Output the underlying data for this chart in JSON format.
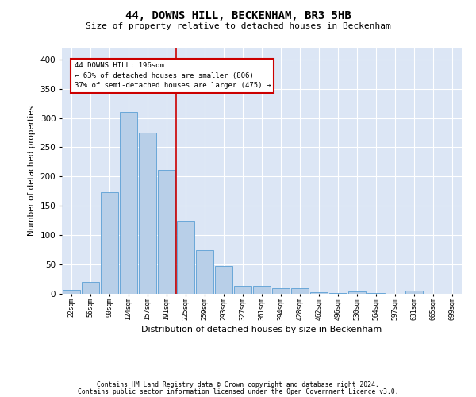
{
  "title": "44, DOWNS HILL, BECKENHAM, BR3 5HB",
  "subtitle": "Size of property relative to detached houses in Beckenham",
  "xlabel": "Distribution of detached houses by size in Beckenham",
  "ylabel": "Number of detached properties",
  "bar_labels": [
    "22sqm",
    "56sqm",
    "90sqm",
    "124sqm",
    "157sqm",
    "191sqm",
    "225sqm",
    "259sqm",
    "293sqm",
    "327sqm",
    "361sqm",
    "394sqm",
    "428sqm",
    "462sqm",
    "496sqm",
    "530sqm",
    "564sqm",
    "597sqm",
    "631sqm",
    "665sqm",
    "699sqm"
  ],
  "bar_values": [
    7,
    21,
    173,
    310,
    275,
    211,
    125,
    75,
    48,
    14,
    14,
    9,
    9,
    3,
    1,
    4,
    1,
    0,
    5,
    0,
    0
  ],
  "bar_color": "#b8cfe8",
  "bar_edge_color": "#5a9fd4",
  "bg_color": "#dce6f5",
  "grid_color": "#ffffff",
  "vline_x": 5.5,
  "vline_color": "#cc0000",
  "annotation_line1": "44 DOWNS HILL: 196sqm",
  "annotation_line2": "← 63% of detached houses are smaller (806)",
  "annotation_line3": "37% of semi-detached houses are larger (475) →",
  "box_color": "#cc0000",
  "footer1": "Contains HM Land Registry data © Crown copyright and database right 2024.",
  "footer2": "Contains public sector information licensed under the Open Government Licence v3.0.",
  "ylim": [
    0,
    420
  ],
  "yticks": [
    0,
    50,
    100,
    150,
    200,
    250,
    300,
    350,
    400
  ]
}
